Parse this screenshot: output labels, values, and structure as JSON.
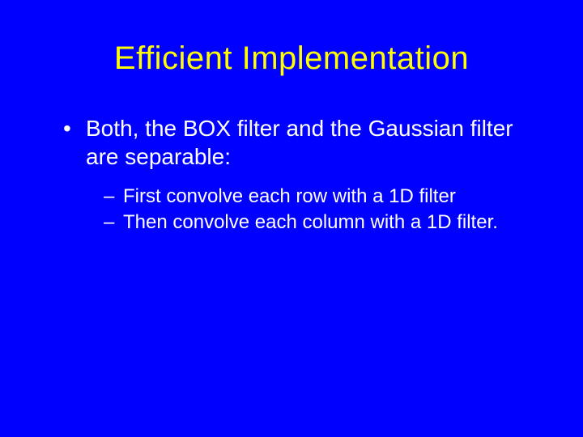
{
  "slide": {
    "background_color": "#0000ff",
    "title": {
      "text": "Efficient Implementation",
      "color": "#ffff00",
      "fontsize": 40
    },
    "body_color": "#ffffff",
    "bullets": {
      "l1_fontsize": 28,
      "l2_fontsize": 24,
      "item1": "Both, the BOX filter and the Gaussian filter are separable:",
      "sub1": "First convolve each row with a 1D filter",
      "sub2": "Then convolve each column with a 1D filter."
    }
  }
}
